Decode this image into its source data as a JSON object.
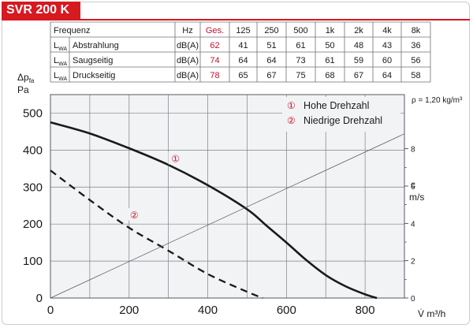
{
  "header": {
    "title": "SVR 200 K"
  },
  "table": {
    "headers": [
      "Frequenz",
      "",
      "Hz",
      "Ges.",
      "125",
      "250",
      "500",
      "1k",
      "2k",
      "4k",
      "8k"
    ],
    "rows": [
      {
        "lwa": "L",
        "sub": "WA",
        "name": "Abstrahlung",
        "unit": "dB(A)",
        "total": "62",
        "values": [
          "41",
          "51",
          "61",
          "50",
          "48",
          "43",
          "36"
        ]
      },
      {
        "lwa": "L",
        "sub": "WA",
        "name": "Saugseitig",
        "unit": "dB(A)",
        "total": "74",
        "values": [
          "64",
          "64",
          "73",
          "61",
          "59",
          "60",
          "56"
        ]
      },
      {
        "lwa": "L",
        "sub": "WA",
        "name": "Druckseitig",
        "unit": "dB(A)",
        "total": "78",
        "values": [
          "65",
          "67",
          "75",
          "68",
          "67",
          "64",
          "58"
        ]
      }
    ],
    "highlight_color": "#c8102e"
  },
  "chart_data": {
    "type": "line",
    "ylabel_main": "Δp",
    "ylabel_sub": "fa",
    "ylabel_unit": "Pa",
    "xlabel": "V̇ m³/h",
    "density": "ρ = 1,20 kg/m³",
    "right_axis_label_top": "c",
    "right_axis_label_unit": "m/s",
    "xlim": [
      0,
      900
    ],
    "ylim": [
      0,
      550
    ],
    "yticks": [
      0,
      100,
      200,
      300,
      400,
      500
    ],
    "xticks": [
      0,
      200,
      400,
      600,
      800
    ],
    "right_ylim": [
      0,
      10.9
    ],
    "right_yticks": [
      0,
      2,
      4,
      6,
      8
    ],
    "grid": true,
    "series": [
      {
        "name": "Hohe Drehzahl",
        "marker": "①",
        "style": "solid",
        "x": [
          0,
          100,
          200,
          300,
          400,
          500,
          550,
          600,
          650,
          700,
          750,
          800,
          830
        ],
        "y": [
          475,
          445,
          405,
          360,
          305,
          240,
          195,
          150,
          103,
          62,
          32,
          10,
          0
        ]
      },
      {
        "name": "Niedrige Drehzahl",
        "marker": "②",
        "style": "dashed",
        "x": [
          0,
          100,
          200,
          300,
          400,
          500,
          540
        ],
        "y": [
          345,
          265,
          190,
          128,
          65,
          17,
          0
        ]
      },
      {
        "name": "",
        "style": "thin",
        "axis": "right",
        "x": [
          0,
          900
        ],
        "y": [
          0,
          8.8
        ]
      }
    ],
    "legend": [
      {
        "marker": "①",
        "label": "Hohe Drehzahl"
      },
      {
        "marker": "②",
        "label": "Niedrige Drehzahl"
      }
    ],
    "curve_markers": [
      {
        "marker": "①",
        "x": 318,
        "y": 372
      },
      {
        "marker": "②",
        "x": 213,
        "y": 220
      }
    ]
  }
}
